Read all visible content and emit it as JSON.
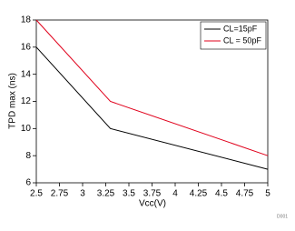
{
  "chart_data": {
    "type": "line",
    "xlabel": "Vcc(V)",
    "ylabel": "TPD max (ns)",
    "footnote": "D001",
    "x": [
      2.5,
      3.3,
      5
    ],
    "series": [
      {
        "name": "CL=15pF",
        "color": "#000000",
        "values": [
          16,
          10,
          7
        ]
      },
      {
        "name": "CL = 50pF",
        "color": "#e0001b",
        "values": [
          18,
          12,
          8
        ]
      }
    ],
    "xlim": [
      2.5,
      5
    ],
    "xticks": [
      2.5,
      2.75,
      3,
      3.25,
      3.5,
      3.75,
      4,
      4.25,
      4.5,
      4.75,
      5
    ],
    "ylim": [
      6,
      18
    ],
    "yticks": [
      6,
      8,
      10,
      12,
      14,
      16,
      18
    ],
    "grid": false,
    "legend": "top-right"
  }
}
